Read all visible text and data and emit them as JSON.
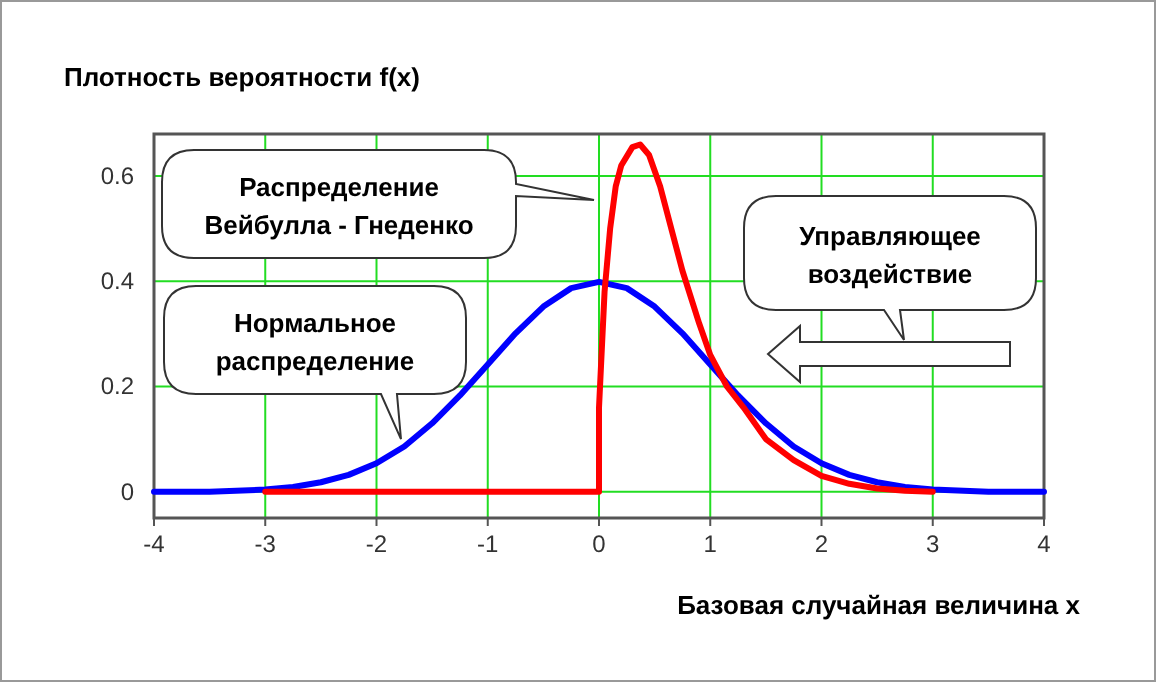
{
  "chart_data": {
    "type": "line",
    "xlabel": "Базовая случайная величина x",
    "ylabel": "Плотность вероятности f(x)",
    "xlim": [
      -4,
      4
    ],
    "ylim": [
      -0.05,
      0.68
    ],
    "xticks": [
      -4,
      -3,
      -2,
      -1,
      0,
      1,
      2,
      3,
      4
    ],
    "yticks": [
      0,
      0.2,
      0.4,
      0.6
    ],
    "grid": true,
    "marker": "none",
    "line_style": "solid",
    "series": [
      {
        "color": "#0000ff",
        "x": [
          -4,
          -3.5,
          -3,
          -2.75,
          -2.5,
          -2.25,
          -2,
          -1.75,
          -1.5,
          -1.25,
          -1,
          -0.75,
          -0.5,
          -0.25,
          0,
          0.25,
          0.5,
          0.75,
          1,
          1.25,
          1.5,
          1.75,
          2,
          2.25,
          2.5,
          2.75,
          3,
          3.5,
          4
        ],
        "values": [
          0,
          0,
          0.004,
          0.009,
          0.018,
          0.032,
          0.054,
          0.086,
          0.13,
          0.183,
          0.242,
          0.301,
          0.352,
          0.387,
          0.399,
          0.387,
          0.352,
          0.301,
          0.242,
          0.183,
          0.13,
          0.086,
          0.054,
          0.032,
          0.018,
          0.009,
          0.004,
          0,
          0
        ]
      },
      {
        "color": "#ff0000",
        "x": [
          -3,
          0,
          0,
          0.05,
          0.1,
          0.15,
          0.2,
          0.3,
          0.37,
          0.45,
          0.55,
          0.65,
          0.75,
          0.9,
          1,
          1.15,
          1.3,
          1.5,
          1.75,
          2,
          2.25,
          2.5,
          2.75,
          3
        ],
        "values": [
          0,
          0,
          0.16,
          0.38,
          0.5,
          0.58,
          0.62,
          0.655,
          0.66,
          0.64,
          0.58,
          0.5,
          0.42,
          0.32,
          0.26,
          0.2,
          0.16,
          0.1,
          0.06,
          0.03,
          0.015,
          0.006,
          0.002,
          0
        ]
      }
    ],
    "annotations": [
      "Распределение\nВейбулла - Гнеденко",
      {
        "text": "Нормальное\nраспределение",
        "x": -1.78,
        "y": 0.1
      },
      "Управляющее\nвоздействие"
    ]
  }
}
